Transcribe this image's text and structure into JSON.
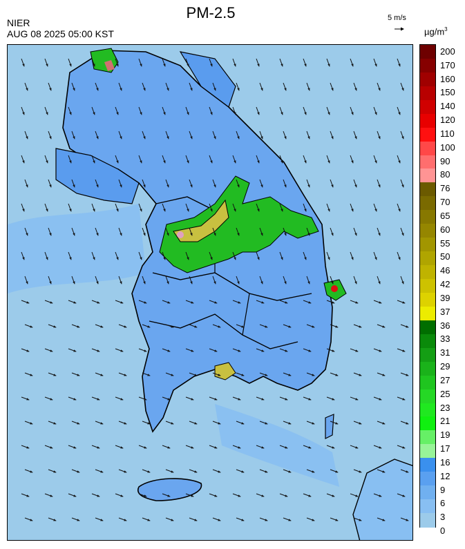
{
  "header": {
    "title": "PM-2.5",
    "org": "NIER",
    "timestamp": "AUG 08 2025 05:00 KST",
    "wind_ref_label": "5 m/s",
    "unit_base": "µg/m",
    "unit_exp": "3"
  },
  "colorbar": {
    "labels": [
      "200",
      "170",
      "160",
      "150",
      "140",
      "120",
      "110",
      "100",
      "90",
      "80",
      "76",
      "70",
      "65",
      "60",
      "55",
      "50",
      "46",
      "42",
      "39",
      "37",
      "36",
      "33",
      "31",
      "29",
      "27",
      "25",
      "23",
      "21",
      "19",
      "17",
      "16",
      "12",
      "9",
      "6",
      "3",
      "0"
    ],
    "colors": [
      "#6e0000",
      "#860000",
      "#a00000",
      "#b80000",
      "#d00000",
      "#e80000",
      "#ff1010",
      "#ff4848",
      "#ff6e6e",
      "#ff9494",
      "#6b5a00",
      "#7a6a00",
      "#877800",
      "#958600",
      "#a29600",
      "#b0a500",
      "#bfb300",
      "#cdc200",
      "#ddd200",
      "#ecec00",
      "#006e00",
      "#0a8a0a",
      "#149e14",
      "#1ab21a",
      "#1fc51f",
      "#25d825",
      "#20e820",
      "#10f010",
      "#66f066",
      "#98f498",
      "#3a90ee",
      "#5aa0f0",
      "#70b0f0",
      "#88bff2",
      "#9ccbea"
    ],
    "colors_legend": "swatches from top (200) to bottom (0)"
  },
  "map": {
    "background_color": "#9ccbea",
    "low_color": "#6aa6ef",
    "mid_color": "#4d92e8",
    "green_color": "#22bb22",
    "yellow_color": "#c8c040",
    "red_color": "#dd1111",
    "wind_direction": "predominantly southeast-bound (north-westerly flow)"
  }
}
